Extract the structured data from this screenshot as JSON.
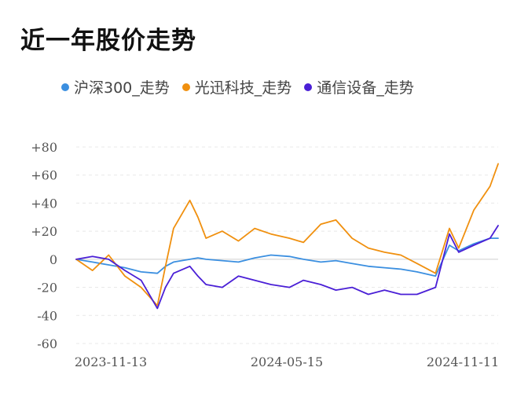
{
  "title": "近一年股价走势",
  "colors": {
    "hs300": "#3b8fe0",
    "gxkj": "#f0900f",
    "txsb": "#4a1fd6",
    "grid": "#e8e8e8",
    "zero_line": "#cfcfcf"
  },
  "legend": [
    {
      "name": "沪深300_走势",
      "color": "#3b8fe0"
    },
    {
      "name": "光迅科技_走势",
      "color": "#f0900f"
    },
    {
      "name": "通信设备_走势",
      "color": "#4a1fd6"
    }
  ],
  "chart_data": {
    "type": "line",
    "title": "近一年股价走势",
    "xlabel": "",
    "ylabel": "",
    "ylim": [
      -60,
      80
    ],
    "y_ticks": [
      80,
      60,
      40,
      20,
      0,
      -20,
      -40,
      -60
    ],
    "y_tick_labels": [
      "+80",
      "+60",
      "+40",
      "+20",
      "0",
      "-20",
      "-40",
      "-60"
    ],
    "x_tick_labels": [
      "2023-11-13",
      "2024-05-15",
      "2024-11-11"
    ],
    "grid": true,
    "legend_position": "top",
    "x": [
      "2023-11-13",
      "2023-11-27",
      "2023-12-11",
      "2023-12-25",
      "2024-01-08",
      "2024-01-22",
      "2024-01-29",
      "2024-02-05",
      "2024-02-19",
      "2024-02-26",
      "2024-03-04",
      "2024-03-18",
      "2024-04-01",
      "2024-04-15",
      "2024-04-29",
      "2024-05-15",
      "2024-05-27",
      "2024-06-11",
      "2024-06-24",
      "2024-07-08",
      "2024-07-22",
      "2024-08-05",
      "2024-08-19",
      "2024-09-02",
      "2024-09-18",
      "2024-09-30",
      "2024-10-08",
      "2024-10-21",
      "2024-11-04",
      "2024-11-11"
    ],
    "series": [
      {
        "name": "沪深300_走势",
        "values": [
          0,
          -2,
          -4,
          -6,
          -9,
          -10,
          -5,
          -2,
          0,
          1,
          0,
          -1,
          -2,
          1,
          3,
          2,
          0,
          -2,
          -1,
          -3,
          -5,
          -6,
          -7,
          -9,
          -12,
          10,
          6,
          11,
          15,
          15
        ]
      },
      {
        "name": "光迅科技_走势",
        "values": [
          0,
          -8,
          3,
          -12,
          -20,
          -33,
          -5,
          22,
          42,
          30,
          15,
          20,
          13,
          22,
          18,
          15,
          12,
          25,
          28,
          15,
          8,
          5,
          3,
          -3,
          -10,
          22,
          8,
          35,
          52,
          68
        ]
      },
      {
        "name": "通信设备_走势",
        "values": [
          0,
          2,
          0,
          -8,
          -15,
          -35,
          -20,
          -10,
          -5,
          -12,
          -18,
          -20,
          -12,
          -15,
          -18,
          -20,
          -15,
          -18,
          -22,
          -20,
          -25,
          -22,
          -25,
          -25,
          -20,
          18,
          5,
          10,
          15,
          24
        ]
      }
    ]
  }
}
